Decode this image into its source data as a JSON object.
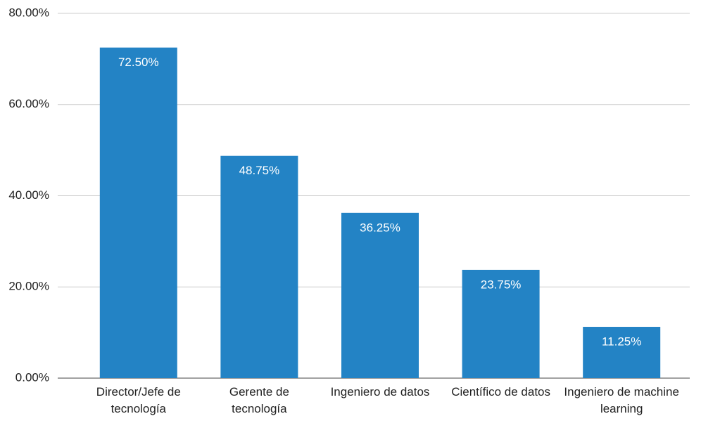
{
  "chart_data": {
    "type": "bar",
    "categories": [
      "Director/Jefe de tecnología",
      "Gerente de tecnología",
      "Ingeniero de datos",
      "Científico de datos",
      "Ingeniero de machine learning"
    ],
    "values": [
      72.5,
      48.75,
      36.25,
      23.75,
      11.25
    ],
    "value_labels": [
      "72.50%",
      "48.75%",
      "36.25%",
      "23.75%",
      "11.25%"
    ],
    "color": "#2383c5",
    "ylim": [
      0,
      80
    ],
    "yticks": [
      {
        "value": 0,
        "label": "0.00%"
      },
      {
        "value": 20,
        "label": "20.00%"
      },
      {
        "value": 40,
        "label": "40.00%"
      },
      {
        "value": 60,
        "label": "60.00%"
      },
      {
        "value": 80,
        "label": "80.00%"
      }
    ],
    "grid": true
  }
}
